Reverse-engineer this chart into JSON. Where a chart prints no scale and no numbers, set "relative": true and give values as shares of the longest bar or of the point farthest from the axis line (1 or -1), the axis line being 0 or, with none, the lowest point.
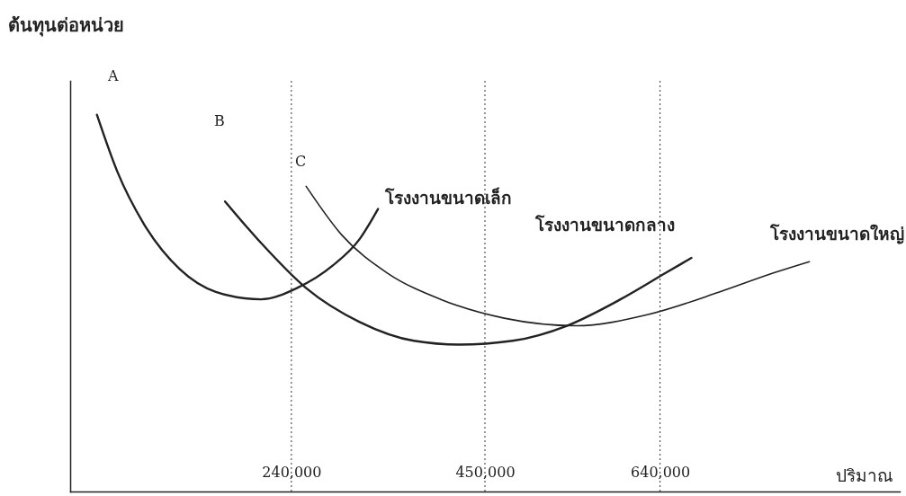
{
  "chart_data": {
    "type": "line",
    "relative": true,
    "ylabel": "ต้นทุนต่อหน่วย",
    "xlabel": "ปริมาณ",
    "xlim": [
      0,
      900000
    ],
    "xticks": [
      {
        "value": 240000,
        "label": "240,000"
      },
      {
        "value": 450000,
        "label": "450,000"
      },
      {
        "value": 640000,
        "label": "640,000"
      }
    ],
    "annotations": [
      "A",
      "B",
      "C"
    ],
    "ref_lines": [
      {
        "axis": "x",
        "value": 240000,
        "line_style": "dotted",
        "color": "#333333"
      },
      {
        "axis": "x",
        "value": 450000,
        "line_style": "dotted",
        "color": "#333333"
      },
      {
        "axis": "x",
        "value": 640000,
        "line_style": "dotted",
        "color": "#333333"
      }
    ],
    "series": [
      {
        "name": "โรงงานขนาดเล็ก",
        "color": "#222222",
        "x": [
          29000,
          51000,
          80000,
          119000,
          158000,
          207000,
          246000,
          285000,
          314000,
          334000
        ],
        "values": [
          1.0,
          0.85,
          0.71,
          0.59,
          0.53,
          0.51,
          0.54,
          0.6,
          0.67,
          0.75
        ]
      },
      {
        "name": "โรงงานขนาดกลาง",
        "color": "#222222",
        "x": [
          168000,
          207000,
          256000,
          314000,
          373000,
          422000,
          480000,
          539000,
          597000,
          646000,
          674000
        ],
        "values": [
          0.77,
          0.66,
          0.54,
          0.45,
          0.4,
          0.39,
          0.4,
          0.44,
          0.51,
          0.58,
          0.62
        ]
      },
      {
        "name": "โรงงานขนาดใหญ่",
        "color": "#222222",
        "x": [
          256000,
          295000,
          344000,
          402000,
          471000,
          549000,
          627000,
          705000,
          763000,
          802000
        ],
        "values": [
          0.81,
          0.68,
          0.58,
          0.51,
          0.46,
          0.44,
          0.47,
          0.53,
          0.58,
          0.61
        ]
      }
    ],
    "line_style": "solid",
    "grid": false
  }
}
